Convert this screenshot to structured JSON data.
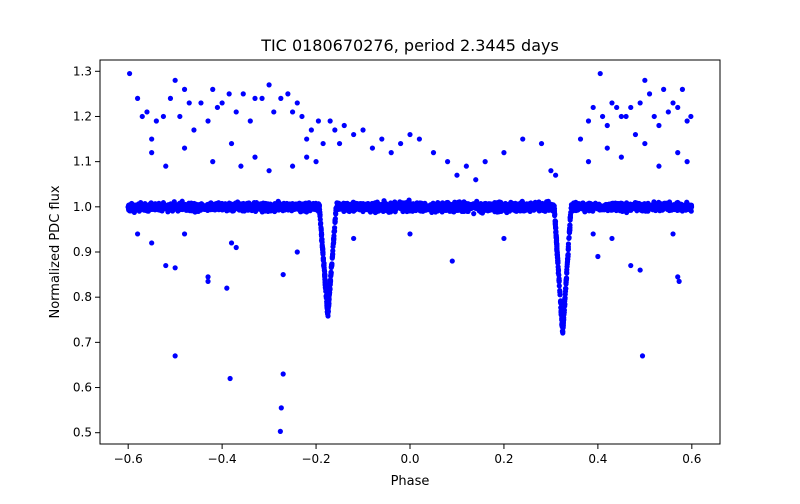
{
  "chart_data": {
    "type": "scatter",
    "title": "TIC 0180670276, period 2.3445 days",
    "xlabel": "Phase",
    "ylabel": "Normalized PDC flux",
    "xlim": [
      -0.66,
      0.66
    ],
    "ylim": [
      0.475,
      1.325
    ],
    "xticks": [
      -0.6,
      -0.4,
      -0.2,
      0.0,
      0.2,
      0.4,
      0.6
    ],
    "xtick_labels": [
      "−0.6",
      "−0.4",
      "−0.2",
      "0.0",
      "0.2",
      "0.4",
      "0.6"
    ],
    "yticks": [
      0.5,
      0.6,
      0.7,
      0.8,
      0.9,
      1.0,
      1.1,
      1.2,
      1.3
    ],
    "ytick_labels": [
      "0.5",
      "0.6",
      "0.7",
      "0.8",
      "0.9",
      "1.0",
      "1.1",
      "1.2",
      "1.3"
    ],
    "grid": false,
    "marker_color": "#0000ff",
    "series": [
      {
        "points": [
          [
            -0.597,
            1.295
          ],
          [
            -0.58,
            1.24
          ],
          [
            -0.57,
            1.2
          ],
          [
            -0.56,
            1.21
          ],
          [
            -0.55,
            1.15
          ],
          [
            -0.54,
            1.19
          ],
          [
            -0.525,
            1.2
          ],
          [
            -0.51,
            1.24
          ],
          [
            -0.5,
            1.28
          ],
          [
            -0.49,
            1.2
          ],
          [
            -0.48,
            1.26
          ],
          [
            -0.47,
            1.23
          ],
          [
            -0.46,
            1.17
          ],
          [
            -0.445,
            1.23
          ],
          [
            -0.43,
            1.19
          ],
          [
            -0.42,
            1.26
          ],
          [
            -0.41,
            1.22
          ],
          [
            -0.4,
            1.23
          ],
          [
            -0.385,
            1.25
          ],
          [
            -0.37,
            1.21
          ],
          [
            -0.355,
            1.25
          ],
          [
            -0.34,
            1.19
          ],
          [
            -0.33,
            1.24
          ],
          [
            -0.315,
            1.24
          ],
          [
            -0.3,
            1.27
          ],
          [
            -0.29,
            1.21
          ],
          [
            -0.275,
            1.24
          ],
          [
            -0.26,
            1.25
          ],
          [
            -0.25,
            1.21
          ],
          [
            -0.24,
            1.23
          ],
          [
            -0.23,
            1.2
          ],
          [
            -0.22,
            1.15
          ],
          [
            -0.21,
            1.17
          ],
          [
            -0.195,
            1.19
          ],
          [
            -0.185,
            1.14
          ],
          [
            -0.55,
            1.12
          ],
          [
            -0.52,
            1.09
          ],
          [
            -0.48,
            1.13
          ],
          [
            -0.42,
            1.1
          ],
          [
            -0.38,
            1.14
          ],
          [
            -0.36,
            1.09
          ],
          [
            -0.33,
            1.11
          ],
          [
            -0.3,
            1.08
          ],
          [
            -0.25,
            1.09
          ],
          [
            -0.22,
            1.11
          ],
          [
            -0.2,
            1.1
          ],
          [
            -0.58,
            0.94
          ],
          [
            -0.55,
            0.92
          ],
          [
            -0.52,
            0.87
          ],
          [
            -0.5,
            0.865
          ],
          [
            -0.48,
            0.94
          ],
          [
            -0.43,
            0.845
          ],
          [
            -0.43,
            0.835
          ],
          [
            -0.39,
            0.82
          ],
          [
            -0.38,
            0.92
          ],
          [
            -0.37,
            0.91
          ],
          [
            -0.27,
            0.85
          ],
          [
            -0.24,
            0.9
          ],
          [
            -0.5,
            0.67
          ],
          [
            -0.383,
            0.62
          ],
          [
            -0.27,
            0.63
          ],
          [
            -0.274,
            0.555
          ],
          [
            -0.276,
            0.503
          ],
          [
            -0.17,
            1.19
          ],
          [
            -0.16,
            1.17
          ],
          [
            -0.15,
            1.14
          ],
          [
            -0.14,
            1.18
          ],
          [
            -0.12,
            1.16
          ],
          [
            -0.1,
            1.17
          ],
          [
            -0.08,
            1.13
          ],
          [
            -0.06,
            1.15
          ],
          [
            -0.04,
            1.12
          ],
          [
            -0.02,
            1.14
          ],
          [
            0.0,
            1.16
          ],
          [
            0.02,
            1.15
          ],
          [
            0.05,
            1.12
          ],
          [
            0.08,
            1.1
          ],
          [
            0.12,
            1.09
          ],
          [
            0.16,
            1.1
          ],
          [
            0.2,
            1.12
          ],
          [
            0.24,
            1.15
          ],
          [
            0.28,
            1.14
          ],
          [
            0.3,
            1.08
          ],
          [
            0.31,
            1.07
          ],
          [
            0.1,
            1.07
          ],
          [
            0.14,
            1.06
          ],
          [
            -0.12,
            0.93
          ],
          [
            0.0,
            0.94
          ],
          [
            0.09,
            0.88
          ],
          [
            0.2,
            0.93
          ],
          [
            0.363,
            1.15
          ],
          [
            0.38,
            1.19
          ],
          [
            0.39,
            1.22
          ],
          [
            0.405,
            1.295
          ],
          [
            0.41,
            1.2
          ],
          [
            0.42,
            1.18
          ],
          [
            0.43,
            1.23
          ],
          [
            0.44,
            1.22
          ],
          [
            0.45,
            1.2
          ],
          [
            0.46,
            1.2
          ],
          [
            0.47,
            1.22
          ],
          [
            0.48,
            1.16
          ],
          [
            0.49,
            1.23
          ],
          [
            0.5,
            1.28
          ],
          [
            0.51,
            1.25
          ],
          [
            0.52,
            1.2
          ],
          [
            0.53,
            1.18
          ],
          [
            0.54,
            1.26
          ],
          [
            0.55,
            1.21
          ],
          [
            0.56,
            1.23
          ],
          [
            0.57,
            1.22
          ],
          [
            0.58,
            1.26
          ],
          [
            0.59,
            1.19
          ],
          [
            0.598,
            1.2
          ],
          [
            0.38,
            1.1
          ],
          [
            0.42,
            1.13
          ],
          [
            0.45,
            1.11
          ],
          [
            0.5,
            1.14
          ],
          [
            0.53,
            1.09
          ],
          [
            0.57,
            1.12
          ],
          [
            0.59,
            1.1
          ],
          [
            0.39,
            0.94
          ],
          [
            0.4,
            0.89
          ],
          [
            0.43,
            0.93
          ],
          [
            0.47,
            0.87
          ],
          [
            0.49,
            0.86
          ],
          [
            0.56,
            0.94
          ],
          [
            0.57,
            0.845
          ],
          [
            0.573,
            0.835
          ],
          [
            0.495,
            0.67
          ]
        ]
      }
    ]
  }
}
